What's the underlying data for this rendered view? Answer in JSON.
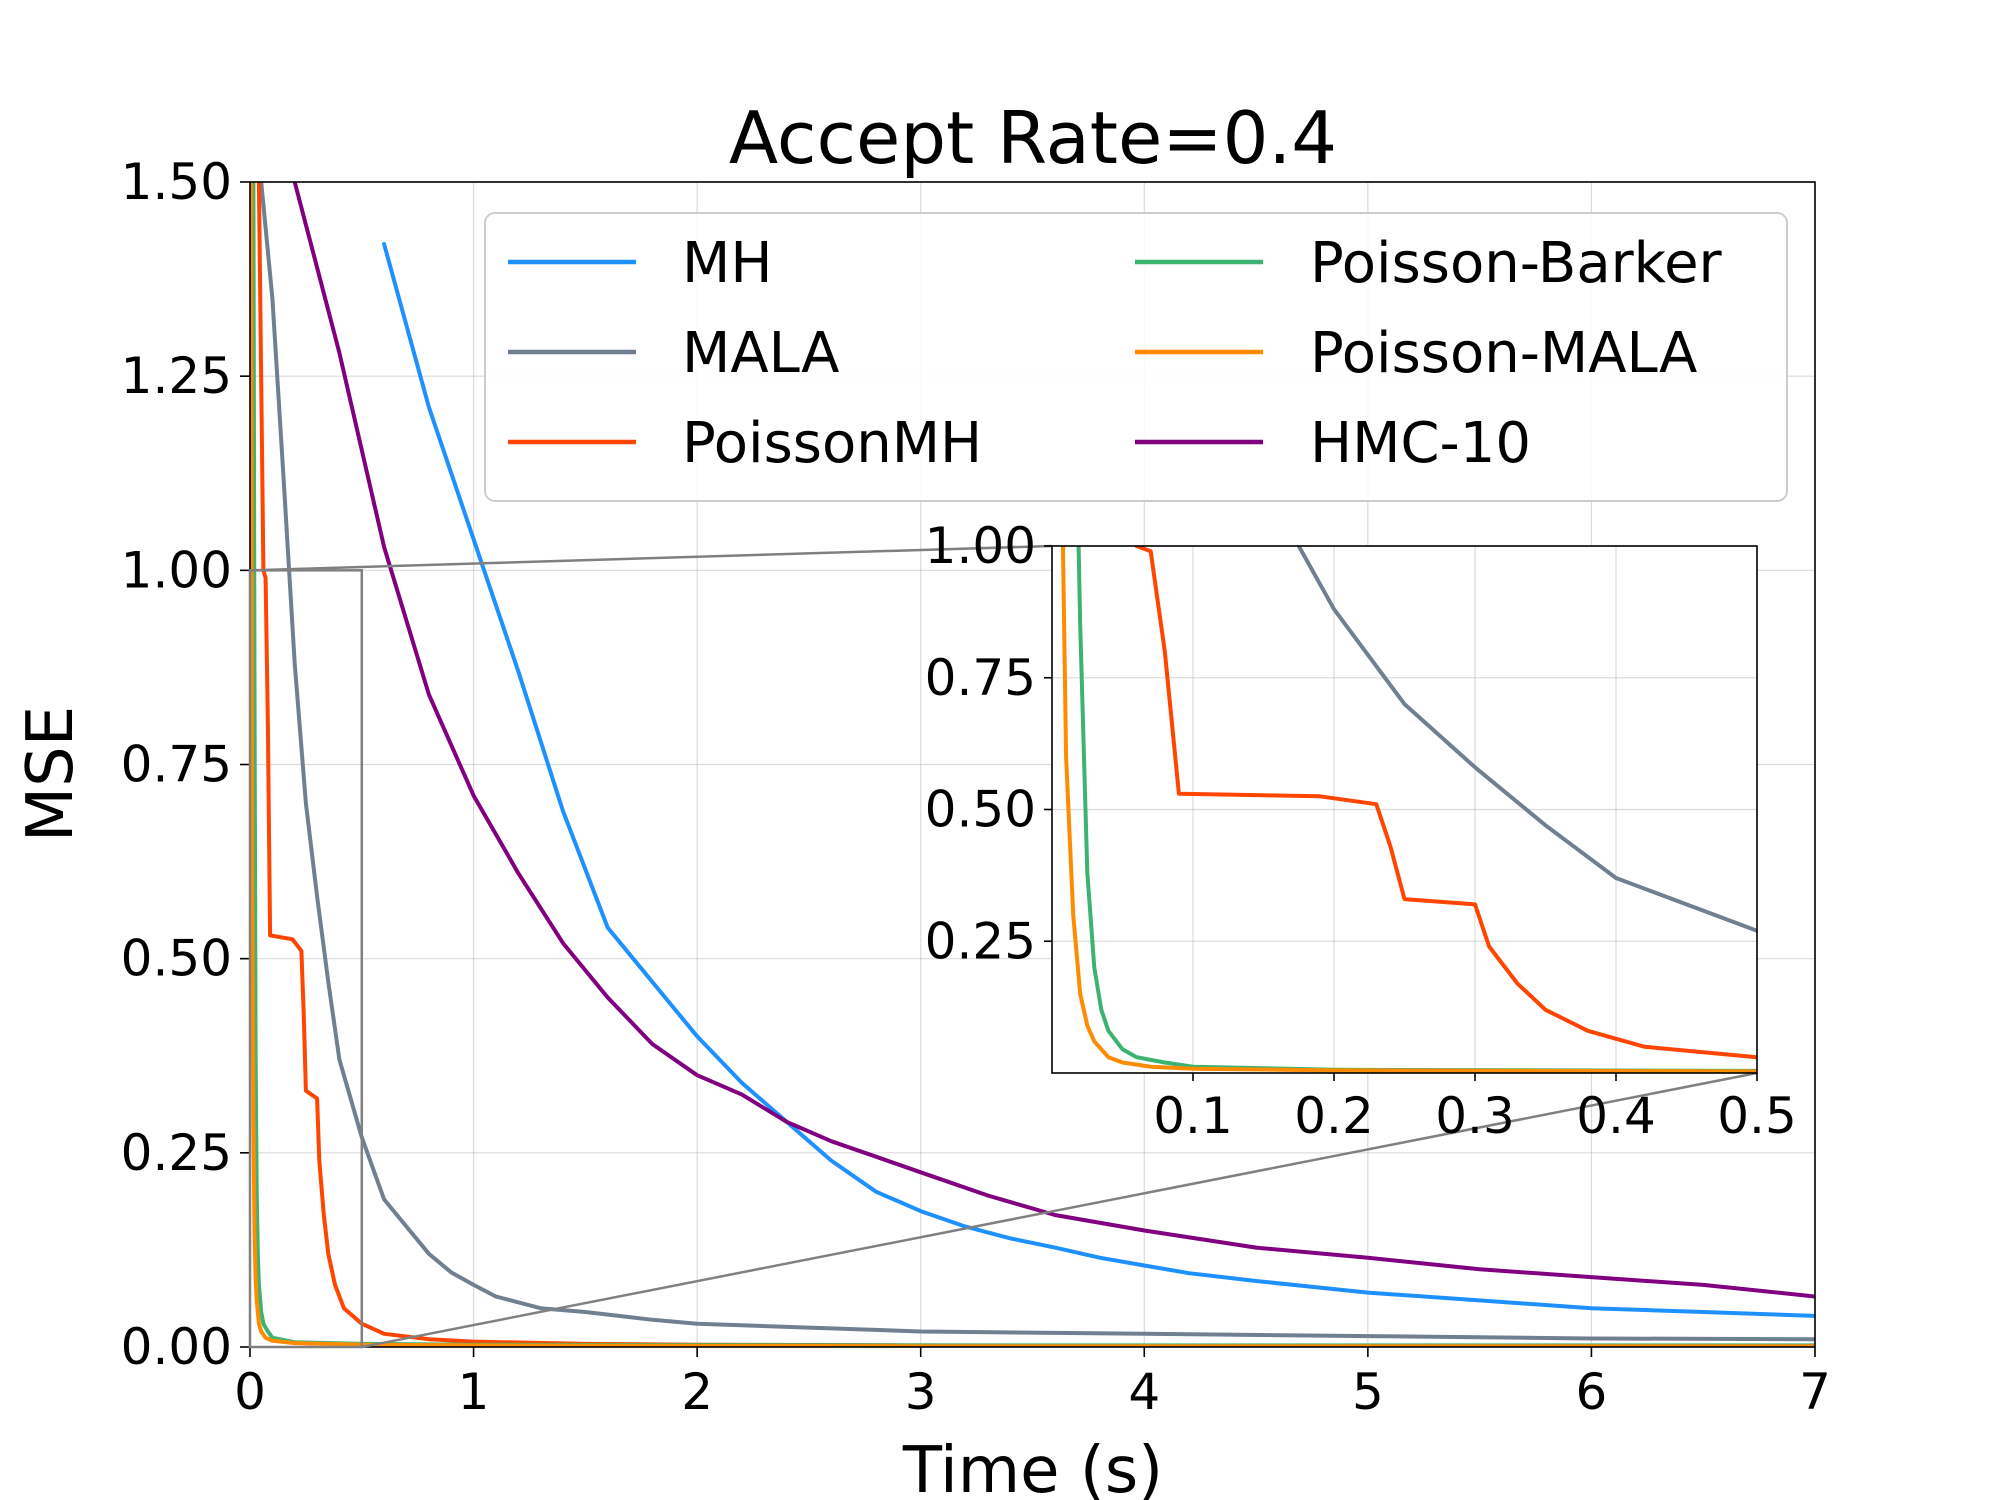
{
  "chart_data": {
    "type": "line",
    "title": "Accept Rate=0.4",
    "xlabel": "Time (s)",
    "ylabel": "MSE",
    "xlim": [
      0,
      7
    ],
    "ylim": [
      0,
      1.5
    ],
    "xticks": [
      "0",
      "1",
      "2",
      "3",
      "4",
      "5",
      "6",
      "7"
    ],
    "yticks": [
      "0.00",
      "0.25",
      "0.50",
      "0.75",
      "1.00",
      "1.25",
      "1.50"
    ],
    "grid": true,
    "legend_position": "top-right",
    "legend_columns": 2,
    "series": [
      {
        "name": "MH",
        "color": "#1e90ff",
        "x": [
          0.6,
          0.8,
          1.0,
          1.2,
          1.4,
          1.6,
          1.8,
          2.0,
          2.2,
          2.4,
          2.6,
          2.8,
          3.0,
          3.2,
          3.4,
          3.6,
          3.8,
          4.0,
          4.2,
          4.5,
          5.0,
          5.5,
          6.0,
          6.5,
          7.0
        ],
        "y": [
          1.42,
          1.21,
          1.04,
          0.87,
          0.69,
          0.54,
          0.47,
          0.4,
          0.34,
          0.29,
          0.24,
          0.2,
          0.175,
          0.155,
          0.14,
          0.128,
          0.115,
          0.105,
          0.095,
          0.085,
          0.07,
          0.06,
          0.05,
          0.045,
          0.04
        ]
      },
      {
        "name": "MALA",
        "color": "#708090",
        "x": [
          0.05,
          0.1,
          0.15,
          0.2,
          0.25,
          0.3,
          0.35,
          0.4,
          0.5,
          0.6,
          0.7,
          0.8,
          0.9,
          1.0,
          1.1,
          1.3,
          1.5,
          1.8,
          2.0,
          2.5,
          3.0,
          4.0,
          5.0,
          6.0,
          7.0
        ],
        "y": [
          1.5,
          1.35,
          1.12,
          0.88,
          0.7,
          0.58,
          0.47,
          0.37,
          0.27,
          0.19,
          0.155,
          0.12,
          0.096,
          0.08,
          0.065,
          0.05,
          0.045,
          0.035,
          0.03,
          0.025,
          0.02,
          0.017,
          0.014,
          0.011,
          0.01
        ]
      },
      {
        "name": "PoissonMH",
        "color": "#ff4500",
        "x": [
          0.04,
          0.06,
          0.07,
          0.08,
          0.09,
          0.19,
          0.23,
          0.24,
          0.25,
          0.3,
          0.31,
          0.33,
          0.35,
          0.38,
          0.42,
          0.5,
          0.6,
          0.8,
          1.0,
          1.5,
          2.0,
          3.0,
          5.0,
          7.0
        ],
        "y": [
          1.5,
          1.0,
          0.99,
          0.8,
          0.53,
          0.525,
          0.51,
          0.43,
          0.33,
          0.32,
          0.24,
          0.17,
          0.12,
          0.08,
          0.05,
          0.03,
          0.017,
          0.01,
          0.007,
          0.004,
          0.003,
          0.002,
          0.0015,
          0.001
        ]
      },
      {
        "name": "Poisson-Barker",
        "color": "#3cb371",
        "x": [
          0.015,
          0.02,
          0.025,
          0.03,
          0.035,
          0.04,
          0.05,
          0.06,
          0.08,
          0.1,
          0.2,
          0.5,
          1.0,
          3.0,
          7.0
        ],
        "y": [
          1.5,
          0.85,
          0.38,
          0.2,
          0.12,
          0.08,
          0.045,
          0.03,
          0.02,
          0.012,
          0.006,
          0.004,
          0.003,
          0.002,
          0.002
        ]
      },
      {
        "name": "Poisson-MALA",
        "color": "#ff8c00",
        "x": [
          0.005,
          0.01,
          0.015,
          0.02,
          0.025,
          0.03,
          0.04,
          0.05,
          0.07,
          0.1,
          0.2,
          0.5,
          1.0,
          3.0,
          7.0
        ],
        "y": [
          1.5,
          0.6,
          0.3,
          0.15,
          0.09,
          0.06,
          0.03,
          0.02,
          0.012,
          0.008,
          0.005,
          0.003,
          0.002,
          0.001,
          0.001
        ]
      },
      {
        "name": "HMC-10",
        "color": "#800080",
        "x": [
          0.2,
          0.4,
          0.6,
          0.8,
          1.0,
          1.2,
          1.4,
          1.6,
          1.8,
          2.0,
          2.2,
          2.4,
          2.6,
          2.8,
          3.0,
          3.3,
          3.6,
          4.0,
          4.5,
          5.0,
          5.5,
          6.0,
          6.5,
          7.0
        ],
        "y": [
          1.5,
          1.28,
          1.03,
          0.84,
          0.71,
          0.61,
          0.52,
          0.45,
          0.39,
          0.35,
          0.325,
          0.29,
          0.265,
          0.245,
          0.225,
          0.195,
          0.17,
          0.15,
          0.128,
          0.115,
          0.1,
          0.09,
          0.08,
          0.065
        ]
      }
    ],
    "inset": {
      "xlim": [
        0,
        0.5
      ],
      "ylim": [
        0,
        1.0
      ],
      "xticks": [
        "0.1",
        "0.2",
        "0.3",
        "0.4",
        "0.5"
      ],
      "yticks": [
        "0.25",
        "0.50",
        "0.75",
        "1.00"
      ],
      "zoom_region": {
        "x": [
          0,
          0.5
        ],
        "y": [
          0,
          1.0
        ]
      }
    }
  }
}
